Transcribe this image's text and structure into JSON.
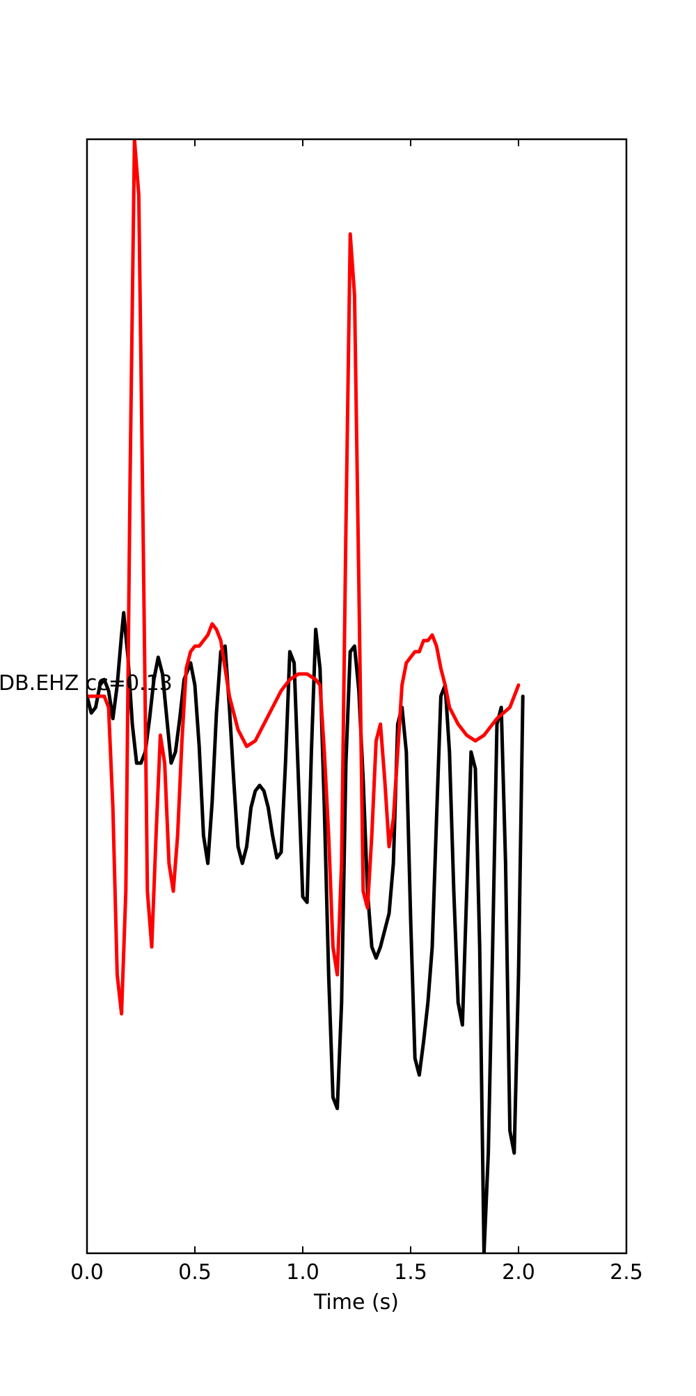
{
  "chart_data": {
    "type": "line",
    "title": "",
    "xlabel": "Time (s)",
    "ylabel": "",
    "xlim": [
      0.0,
      2.5
    ],
    "ylim": [
      -1.0,
      1.0
    ],
    "xticks": [
      "0.0",
      "0.5",
      "1.0",
      "1.5",
      "2.0",
      "2.5"
    ],
    "xtick_values": [
      0.0,
      0.5,
      1.0,
      1.5,
      2.0,
      2.5
    ],
    "grid": false,
    "annotation": "DB.EHZ cc=0.13",
    "series": [
      {
        "color": "#000000",
        "points": [
          [
            0.0,
            0.0
          ],
          [
            0.02,
            -0.03
          ],
          [
            0.04,
            -0.02
          ],
          [
            0.06,
            0.02
          ],
          [
            0.08,
            0.03
          ],
          [
            0.1,
            0.01
          ],
          [
            0.12,
            -0.04
          ],
          [
            0.14,
            0.02
          ],
          [
            0.16,
            0.11
          ],
          [
            0.17,
            0.15
          ],
          [
            0.19,
            0.07
          ],
          [
            0.21,
            -0.05
          ],
          [
            0.23,
            -0.12
          ],
          [
            0.25,
            -0.12
          ],
          [
            0.27,
            -0.1
          ],
          [
            0.29,
            -0.04
          ],
          [
            0.31,
            0.03
          ],
          [
            0.33,
            0.07
          ],
          [
            0.35,
            0.04
          ],
          [
            0.37,
            -0.04
          ],
          [
            0.39,
            -0.12
          ],
          [
            0.41,
            -0.1
          ],
          [
            0.43,
            -0.04
          ],
          [
            0.45,
            0.03
          ],
          [
            0.48,
            0.06
          ],
          [
            0.5,
            0.02
          ],
          [
            0.52,
            -0.09
          ],
          [
            0.54,
            -0.25
          ],
          [
            0.56,
            -0.3
          ],
          [
            0.58,
            -0.19
          ],
          [
            0.6,
            -0.03
          ],
          [
            0.62,
            0.08
          ],
          [
            0.64,
            0.09
          ],
          [
            0.66,
            -0.02
          ],
          [
            0.68,
            -0.15
          ],
          [
            0.7,
            -0.27
          ],
          [
            0.72,
            -0.3
          ],
          [
            0.74,
            -0.27
          ],
          [
            0.76,
            -0.2
          ],
          [
            0.78,
            -0.17
          ],
          [
            0.8,
            -0.16
          ],
          [
            0.82,
            -0.17
          ],
          [
            0.84,
            -0.2
          ],
          [
            0.86,
            -0.25
          ],
          [
            0.88,
            -0.29
          ],
          [
            0.9,
            -0.28
          ],
          [
            0.92,
            -0.12
          ],
          [
            0.94,
            0.08
          ],
          [
            0.96,
            0.06
          ],
          [
            0.98,
            -0.15
          ],
          [
            1.0,
            -0.36
          ],
          [
            1.02,
            -0.37
          ],
          [
            1.04,
            -0.1
          ],
          [
            1.06,
            0.12
          ],
          [
            1.08,
            0.05
          ],
          [
            1.1,
            -0.2
          ],
          [
            1.12,
            -0.5
          ],
          [
            1.14,
            -0.72
          ],
          [
            1.16,
            -0.74
          ],
          [
            1.18,
            -0.55
          ],
          [
            1.2,
            -0.12
          ],
          [
            1.22,
            0.08
          ],
          [
            1.24,
            0.09
          ],
          [
            1.26,
            0.01
          ],
          [
            1.28,
            -0.15
          ],
          [
            1.3,
            -0.35
          ],
          [
            1.32,
            -0.45
          ],
          [
            1.34,
            -0.47
          ],
          [
            1.36,
            -0.45
          ],
          [
            1.38,
            -0.42
          ],
          [
            1.4,
            -0.39
          ],
          [
            1.42,
            -0.3
          ],
          [
            1.44,
            -0.05
          ],
          [
            1.46,
            -0.02
          ],
          [
            1.48,
            -0.1
          ],
          [
            1.5,
            -0.4
          ],
          [
            1.52,
            -0.65
          ],
          [
            1.54,
            -0.68
          ],
          [
            1.56,
            -0.62
          ],
          [
            1.58,
            -0.55
          ],
          [
            1.6,
            -0.45
          ],
          [
            1.62,
            -0.22
          ],
          [
            1.64,
            0.0
          ],
          [
            1.66,
            0.02
          ],
          [
            1.68,
            -0.1
          ],
          [
            1.7,
            -0.35
          ],
          [
            1.72,
            -0.55
          ],
          [
            1.74,
            -0.59
          ],
          [
            1.76,
            -0.35
          ],
          [
            1.78,
            -0.1
          ],
          [
            1.8,
            -0.13
          ],
          [
            1.82,
            -0.45
          ],
          [
            1.84,
            -1.0
          ],
          [
            1.86,
            -0.82
          ],
          [
            1.88,
            -0.45
          ],
          [
            1.9,
            -0.05
          ],
          [
            1.92,
            -0.02
          ],
          [
            1.94,
            -0.3
          ],
          [
            1.96,
            -0.78
          ],
          [
            1.98,
            -0.82
          ],
          [
            2.0,
            -0.5
          ],
          [
            2.02,
            0.0
          ]
        ]
      },
      {
        "color": "#ff0000",
        "points": [
          [
            0.0,
            0.0
          ],
          [
            0.08,
            0.0
          ],
          [
            0.1,
            -0.02
          ],
          [
            0.12,
            -0.2
          ],
          [
            0.14,
            -0.5
          ],
          [
            0.16,
            -0.57
          ],
          [
            0.18,
            -0.35
          ],
          [
            0.2,
            0.4
          ],
          [
            0.22,
            1.0
          ],
          [
            0.24,
            0.9
          ],
          [
            0.26,
            0.3
          ],
          [
            0.28,
            -0.35
          ],
          [
            0.3,
            -0.45
          ],
          [
            0.32,
            -0.25
          ],
          [
            0.34,
            -0.07
          ],
          [
            0.36,
            -0.12
          ],
          [
            0.38,
            -0.3
          ],
          [
            0.4,
            -0.35
          ],
          [
            0.42,
            -0.25
          ],
          [
            0.44,
            -0.08
          ],
          [
            0.46,
            0.05
          ],
          [
            0.48,
            0.08
          ],
          [
            0.5,
            0.09
          ],
          [
            0.52,
            0.09
          ],
          [
            0.54,
            0.1
          ],
          [
            0.56,
            0.11
          ],
          [
            0.58,
            0.13
          ],
          [
            0.6,
            0.12
          ],
          [
            0.62,
            0.1
          ],
          [
            0.64,
            0.05
          ],
          [
            0.66,
            0.0
          ],
          [
            0.7,
            -0.06
          ],
          [
            0.74,
            -0.09
          ],
          [
            0.78,
            -0.08
          ],
          [
            0.82,
            -0.05
          ],
          [
            0.86,
            -0.02
          ],
          [
            0.9,
            0.01
          ],
          [
            0.94,
            0.03
          ],
          [
            0.98,
            0.04
          ],
          [
            1.02,
            0.04
          ],
          [
            1.06,
            0.03
          ],
          [
            1.08,
            0.02
          ],
          [
            1.1,
            -0.1
          ],
          [
            1.12,
            -0.25
          ],
          [
            1.14,
            -0.45
          ],
          [
            1.16,
            -0.5
          ],
          [
            1.18,
            -0.3
          ],
          [
            1.2,
            0.3
          ],
          [
            1.22,
            0.83
          ],
          [
            1.24,
            0.72
          ],
          [
            1.26,
            0.2
          ],
          [
            1.28,
            -0.35
          ],
          [
            1.3,
            -0.38
          ],
          [
            1.32,
            -0.25
          ],
          [
            1.34,
            -0.08
          ],
          [
            1.36,
            -0.05
          ],
          [
            1.38,
            -0.15
          ],
          [
            1.4,
            -0.27
          ],
          [
            1.42,
            -0.22
          ],
          [
            1.44,
            -0.1
          ],
          [
            1.46,
            0.02
          ],
          [
            1.48,
            0.06
          ],
          [
            1.5,
            0.07
          ],
          [
            1.52,
            0.08
          ],
          [
            1.54,
            0.08
          ],
          [
            1.56,
            0.1
          ],
          [
            1.58,
            0.1
          ],
          [
            1.6,
            0.11
          ],
          [
            1.62,
            0.09
          ],
          [
            1.64,
            0.05
          ],
          [
            1.66,
            0.02
          ],
          [
            1.68,
            -0.02
          ],
          [
            1.72,
            -0.05
          ],
          [
            1.76,
            -0.07
          ],
          [
            1.8,
            -0.08
          ],
          [
            1.84,
            -0.07
          ],
          [
            1.9,
            -0.04
          ],
          [
            1.96,
            -0.02
          ],
          [
            2.0,
            0.02
          ]
        ]
      }
    ]
  }
}
